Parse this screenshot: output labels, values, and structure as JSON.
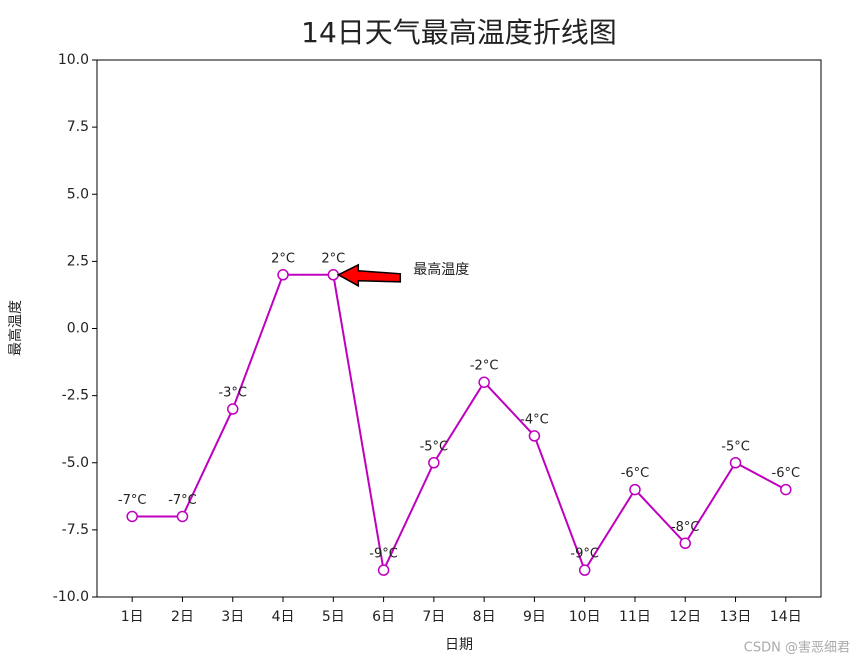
{
  "chart_data": {
    "type": "line",
    "title": "14日天气最高温度折线图",
    "x_label": "日期",
    "y_label": "最高温度",
    "categories": [
      "1日",
      "2日",
      "3日",
      "4日",
      "5日",
      "6日",
      "7日",
      "8日",
      "9日",
      "10日",
      "11日",
      "12日",
      "13日",
      "14日"
    ],
    "series": [
      {
        "name": "最高温度",
        "color": "#bf00bf",
        "values": [
          -7,
          -7,
          -3,
          2,
          2,
          -9,
          -5,
          -2,
          -4,
          -9,
          -6,
          -8,
          -5,
          -6
        ],
        "value_labels": [
          "-7°C",
          "-7°C",
          "-3°C",
          "2°C",
          "2°C",
          "-9°C",
          "-5°C",
          "-2°C",
          "-4°C",
          "-9°C",
          "-6°C",
          "-8°C",
          "-5°C",
          "-6°C"
        ]
      }
    ],
    "ylim": [
      -10,
      10
    ],
    "yticks": [
      {
        "value": 10,
        "label": "10.0"
      },
      7.5,
      {
        "value": 5,
        "label": "5.0"
      },
      2.5,
      {
        "value": 0,
        "label": "0.0"
      },
      -2.5,
      {
        "value": -5,
        "label": "-5.0"
      },
      -7.5,
      {
        "value": -10,
        "label": "-10.0"
      }
    ],
    "annotation": {
      "text": "最高温度",
      "index": 4
    },
    "watermark": "CSDN @害恶细君"
  }
}
